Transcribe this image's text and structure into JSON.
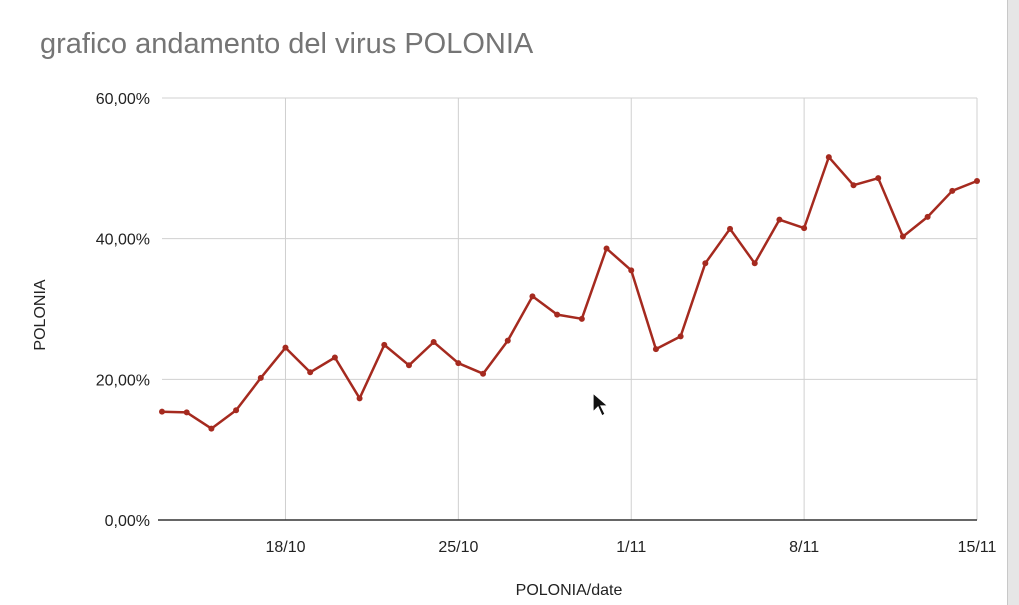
{
  "chart_data": {
    "type": "line",
    "title": "grafico andamento del virus POLONIA",
    "xlabel": "POLONIA/date",
    "ylabel": "POLONIA",
    "x_tick_labels": [
      "18/10",
      "25/10",
      "1/11",
      "8/11",
      "15/11"
    ],
    "y_tick_labels": [
      "0,00%",
      "20,00%",
      "40,00%",
      "60,00%"
    ],
    "ylim": [
      0,
      60
    ],
    "grid": true,
    "line_color": "#a52a1f",
    "series": [
      {
        "x": [
          "13/10",
          "14/10",
          "15/10",
          "16/10",
          "17/10",
          "18/10",
          "19/10",
          "20/10",
          "21/10",
          "22/10",
          "23/10",
          "24/10",
          "25/10",
          "26/10",
          "27/10",
          "28/10",
          "29/10",
          "30/10",
          "31/10",
          "1/11",
          "2/11",
          "3/11",
          "4/11",
          "5/11",
          "6/11",
          "7/11",
          "8/11",
          "9/11",
          "10/11",
          "11/11",
          "12/11",
          "13/11",
          "14/11",
          "15/11"
        ],
        "values": [
          15.4,
          15.3,
          13.0,
          15.6,
          20.2,
          24.5,
          21.0,
          23.1,
          17.3,
          24.9,
          22.0,
          25.3,
          22.3,
          20.8,
          25.5,
          31.8,
          29.2,
          28.6,
          38.6,
          35.5,
          24.3,
          26.1,
          36.5,
          41.4,
          36.5,
          42.7,
          41.5,
          51.6,
          47.6,
          48.6,
          40.3,
          43.1,
          46.8,
          48.2
        ]
      }
    ]
  },
  "icons": {
    "cursor": "mouse-pointer-icon"
  }
}
